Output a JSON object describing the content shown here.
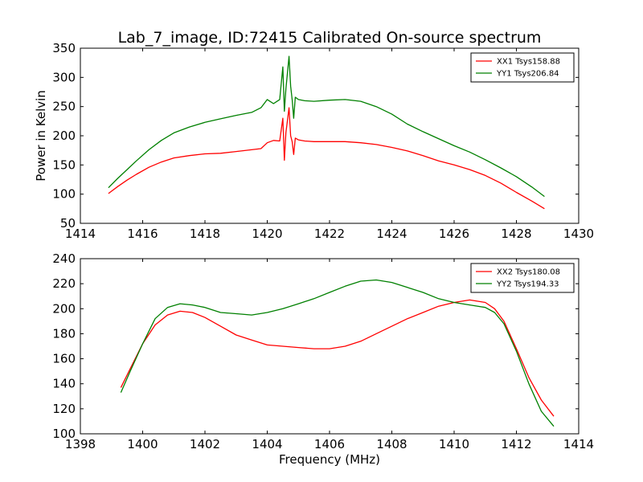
{
  "figure": {
    "title": "Lab_7_image, ID:72415 Calibrated On-source spectrum",
    "background": "#ffffff"
  },
  "chart_data": [
    {
      "type": "line",
      "title": "Lab_7_image, ID:72415 Calibrated On-source spectrum",
      "xlabel": "",
      "ylabel": "Power in Kelvin",
      "xlim": [
        1414,
        1430
      ],
      "ylim": [
        50,
        350
      ],
      "xticks": [
        "1414",
        "1416",
        "1418",
        "1420",
        "1422",
        "1424",
        "1426",
        "1428",
        "1430"
      ],
      "yticks": [
        "50",
        "100",
        "150",
        "200",
        "250",
        "300",
        "350"
      ],
      "legend_position": "top-right",
      "grid": false,
      "series": [
        {
          "name": "XX1 Tsys158.88",
          "color": "#ff0000",
          "x": [
            1414.9,
            1415.2,
            1415.5,
            1415.8,
            1416.2,
            1416.6,
            1417.0,
            1417.5,
            1418.0,
            1418.5,
            1419.0,
            1419.5,
            1419.8,
            1420.0,
            1420.2,
            1420.4,
            1420.5,
            1420.55,
            1420.6,
            1420.7,
            1420.75,
            1420.8,
            1420.85,
            1420.9,
            1421.0,
            1421.2,
            1421.5,
            1422.0,
            1422.5,
            1423.0,
            1423.5,
            1424.0,
            1424.5,
            1425.0,
            1425.5,
            1426.0,
            1426.5,
            1427.0,
            1427.5,
            1428.0,
            1428.5,
            1428.9
          ],
          "y": [
            101,
            113,
            124,
            134,
            146,
            155,
            162,
            166,
            169,
            170,
            173,
            176,
            178,
            188,
            192,
            191,
            230,
            158,
            205,
            248,
            200,
            190,
            168,
            196,
            193,
            191,
            190,
            190,
            190,
            188,
            185,
            180,
            174,
            166,
            157,
            150,
            142,
            132,
            119,
            103,
            88,
            75
          ]
        },
        {
          "name": "YY1 Tsys206.84",
          "color": "#008000",
          "x": [
            1414.9,
            1415.2,
            1415.5,
            1415.8,
            1416.2,
            1416.6,
            1417.0,
            1417.5,
            1418.0,
            1418.5,
            1419.0,
            1419.5,
            1419.8,
            1420.0,
            1420.2,
            1420.4,
            1420.5,
            1420.55,
            1420.6,
            1420.7,
            1420.75,
            1420.8,
            1420.85,
            1420.9,
            1421.0,
            1421.2,
            1421.5,
            1422.0,
            1422.5,
            1423.0,
            1423.5,
            1424.0,
            1424.5,
            1425.0,
            1425.5,
            1426.0,
            1426.5,
            1427.0,
            1427.5,
            1428.0,
            1428.5,
            1428.9
          ],
          "y": [
            111,
            127,
            142,
            157,
            176,
            192,
            205,
            215,
            223,
            229,
            235,
            240,
            248,
            262,
            255,
            262,
            318,
            242,
            280,
            336,
            285,
            262,
            230,
            266,
            262,
            260,
            259,
            261,
            262,
            259,
            250,
            237,
            220,
            207,
            195,
            183,
            172,
            159,
            145,
            130,
            112,
            96
          ]
        }
      ]
    },
    {
      "type": "line",
      "title": "",
      "xlabel": "Frequency (MHz)",
      "ylabel": "",
      "xlim": [
        1398,
        1414
      ],
      "ylim": [
        100,
        240
      ],
      "xticks": [
        "1398",
        "1400",
        "1402",
        "1404",
        "1406",
        "1408",
        "1410",
        "1412",
        "1414"
      ],
      "yticks": [
        "100",
        "120",
        "140",
        "160",
        "180",
        "200",
        "220",
        "240"
      ],
      "legend_position": "top-right",
      "grid": false,
      "series": [
        {
          "name": "XX2 Tsys180.08",
          "color": "#ff0000",
          "x": [
            1399.3,
            1399.6,
            1400.0,
            1400.4,
            1400.8,
            1401.2,
            1401.6,
            1402.0,
            1402.5,
            1403.0,
            1403.5,
            1404.0,
            1404.5,
            1405.0,
            1405.5,
            1406.0,
            1406.5,
            1407.0,
            1407.5,
            1408.0,
            1408.5,
            1409.0,
            1409.5,
            1410.0,
            1410.5,
            1411.0,
            1411.3,
            1411.6,
            1412.0,
            1412.4,
            1412.8,
            1413.2
          ],
          "y": [
            137,
            152,
            172,
            187,
            195,
            198,
            197,
            193,
            186,
            179,
            175,
            171,
            170,
            169,
            168,
            168,
            170,
            174,
            180,
            186,
            192,
            197,
            202,
            205,
            207,
            205,
            200,
            190,
            168,
            145,
            127,
            114
          ]
        },
        {
          "name": "YY2 Tsys194.33",
          "color": "#008000",
          "x": [
            1399.3,
            1399.6,
            1400.0,
            1400.4,
            1400.8,
            1401.2,
            1401.6,
            1402.0,
            1402.5,
            1403.0,
            1403.5,
            1404.0,
            1404.5,
            1405.0,
            1405.5,
            1406.0,
            1406.5,
            1407.0,
            1407.5,
            1408.0,
            1408.5,
            1409.0,
            1409.5,
            1410.0,
            1410.5,
            1411.0,
            1411.3,
            1411.6,
            1412.0,
            1412.4,
            1412.8,
            1413.2
          ],
          "y": [
            133,
            150,
            172,
            192,
            201,
            204,
            203,
            201,
            197,
            196,
            195,
            197,
            200,
            204,
            208,
            213,
            218,
            222,
            223,
            221,
            217,
            213,
            208,
            205,
            203,
            201,
            197,
            188,
            166,
            140,
            118,
            106
          ]
        }
      ]
    }
  ]
}
